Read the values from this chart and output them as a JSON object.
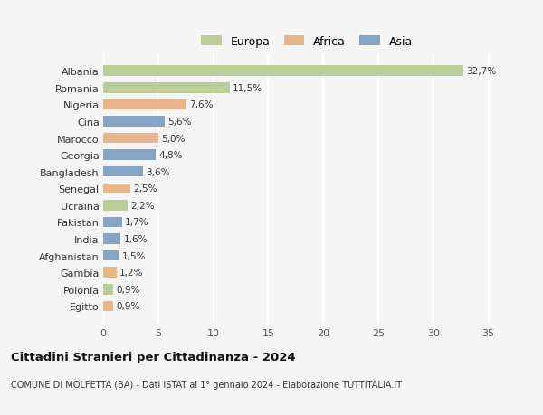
{
  "countries": [
    "Albania",
    "Romania",
    "Nigeria",
    "Cina",
    "Marocco",
    "Georgia",
    "Bangladesh",
    "Senegal",
    "Ucraina",
    "Pakistan",
    "India",
    "Afghanistan",
    "Gambia",
    "Polonia",
    "Egitto"
  ],
  "values": [
    32.7,
    11.5,
    7.6,
    5.6,
    5.0,
    4.8,
    3.6,
    2.5,
    2.2,
    1.7,
    1.6,
    1.5,
    1.2,
    0.9,
    0.9
  ],
  "labels": [
    "32,7%",
    "11,5%",
    "7,6%",
    "5,6%",
    "5,0%",
    "4,8%",
    "3,6%",
    "2,5%",
    "2,2%",
    "1,7%",
    "1,6%",
    "1,5%",
    "1,2%",
    "0,9%",
    "0,9%"
  ],
  "continents": [
    "Europa",
    "Europa",
    "Africa",
    "Asia",
    "Africa",
    "Asia",
    "Asia",
    "Africa",
    "Europa",
    "Asia",
    "Asia",
    "Asia",
    "Africa",
    "Europa",
    "Africa"
  ],
  "colors": {
    "Europa": "#b5c98e",
    "Africa": "#e8b080",
    "Asia": "#7a9bbf"
  },
  "title": "Cittadini Stranieri per Cittadinanza - 2024",
  "subtitle": "COMUNE DI MOLFETTA (BA) - Dati ISTAT al 1° gennaio 2024 - Elaborazione TUTTITALIA.IT",
  "xlim": [
    0,
    37
  ],
  "xticks": [
    0,
    5,
    10,
    15,
    20,
    25,
    30,
    35
  ],
  "background_color": "#f5f5f5",
  "grid_color": "#ffffff",
  "bar_height": 0.62
}
